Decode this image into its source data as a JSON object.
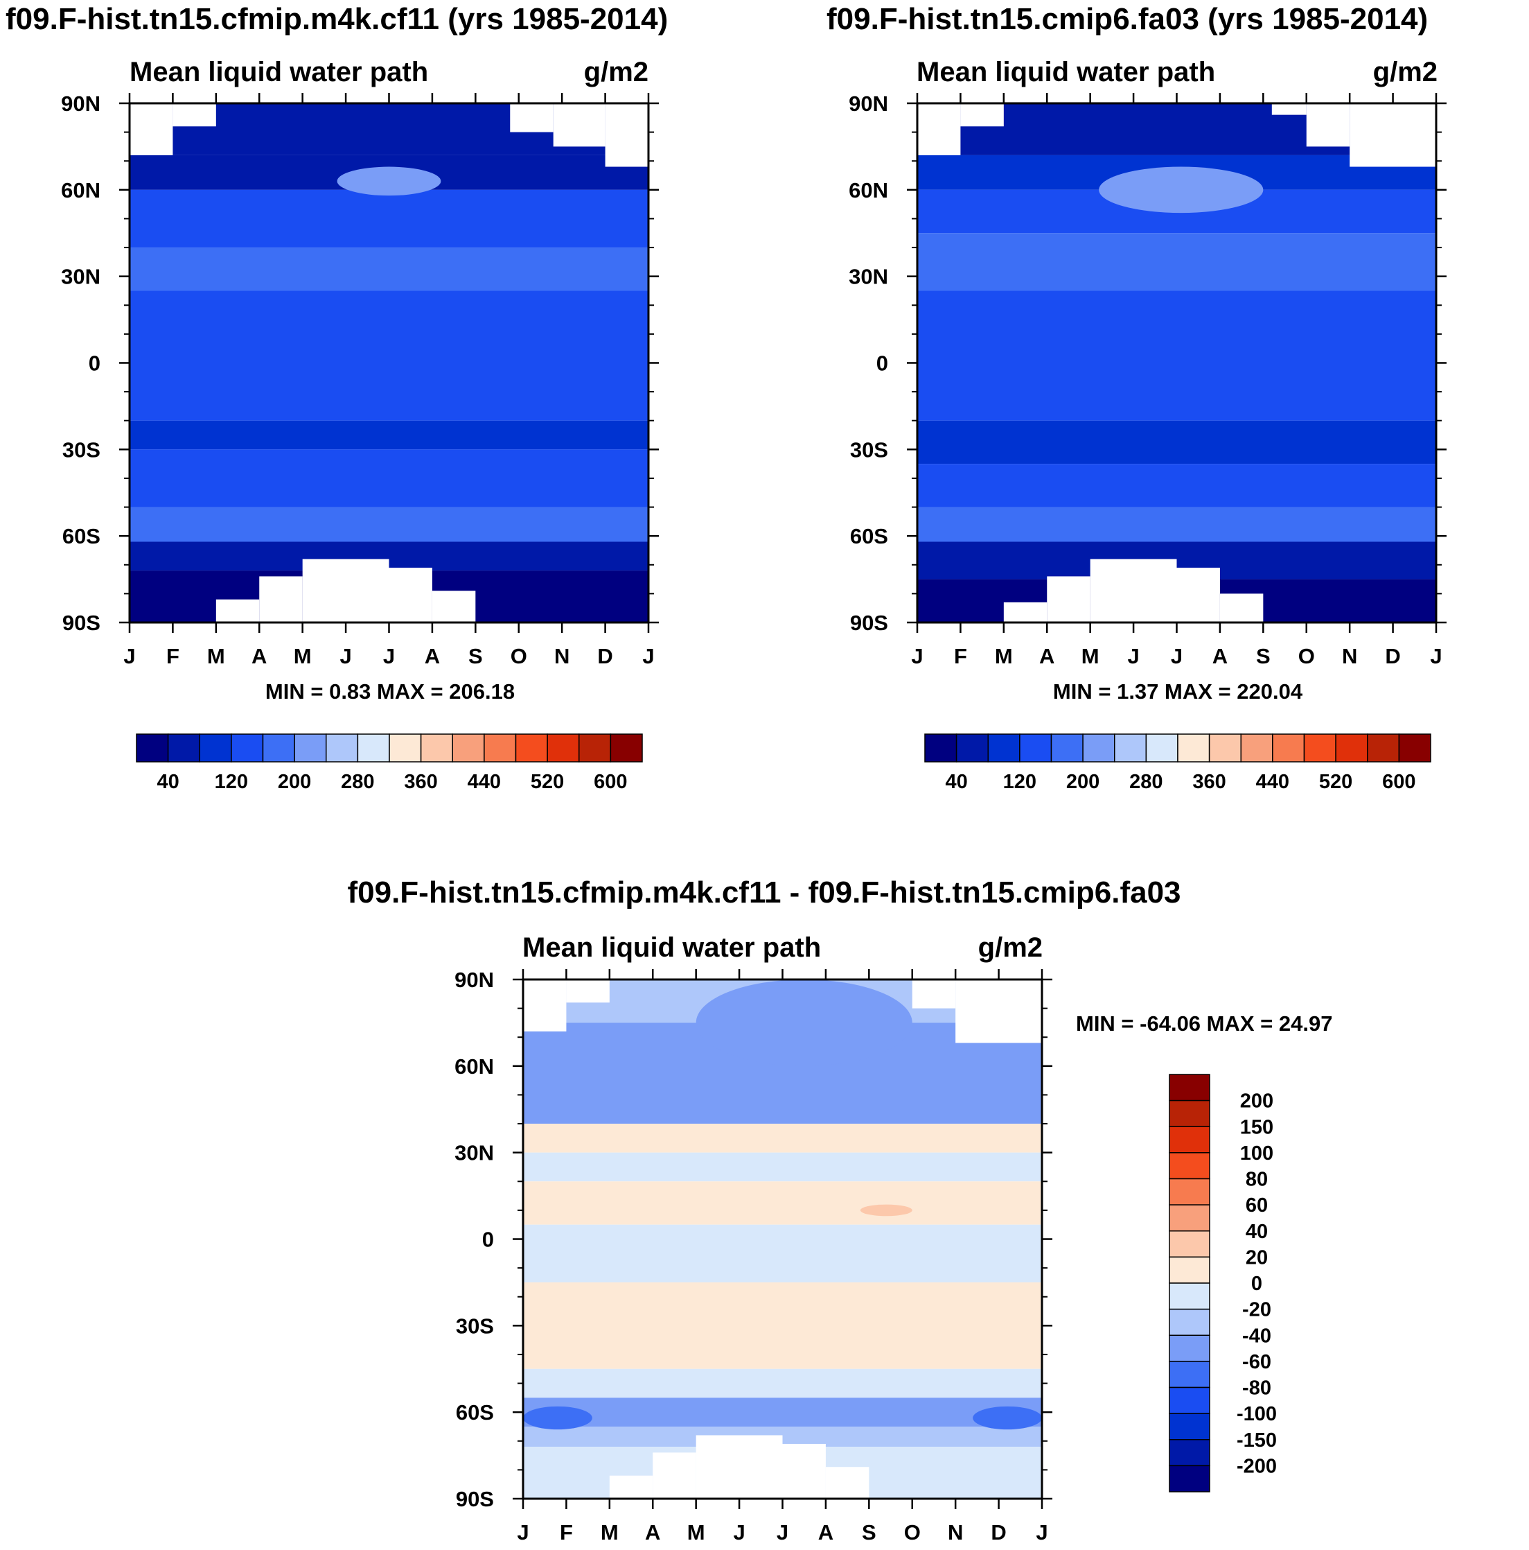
{
  "chart_data": [
    {
      "type": "heatmap",
      "id": "panel1",
      "title": "f09.F-hist.tn15.cfmip.m4k.cf11 (yrs 1985-2014)",
      "subtitle_left": "Mean liquid water path",
      "subtitle_right": "g/m2",
      "xlabel": "",
      "ylabel": "",
      "x_ticks": [
        "J",
        "F",
        "M",
        "A",
        "M",
        "J",
        "J",
        "A",
        "S",
        "O",
        "N",
        "D",
        "J"
      ],
      "y_ticks": [
        "90N",
        "60N",
        "30N",
        "0",
        "30S",
        "60S",
        "90S"
      ],
      "ylim": [
        -90,
        90
      ],
      "stats_label": "MIN =   0.83 MAX = 206.18",
      "min": 0.83,
      "max": 206.18,
      "colorbar": {
        "orientation": "horizontal",
        "labels": [
          "40",
          "120",
          "200",
          "280",
          "360",
          "440",
          "520",
          "600"
        ],
        "levels": [
          0,
          40,
          80,
          120,
          160,
          200,
          240,
          280,
          320,
          360,
          400,
          440,
          480,
          520,
          560,
          600
        ]
      },
      "bands": [
        {
          "lat": [
            72,
            90
          ],
          "level": 1
        },
        {
          "lat": [
            60,
            72
          ],
          "level": 1
        },
        {
          "lat": [
            40,
            60
          ],
          "level": 3
        },
        {
          "lat": [
            25,
            40
          ],
          "level": 4
        },
        {
          "lat": [
            -20,
            25
          ],
          "level": 3
        },
        {
          "lat": [
            -30,
            -20
          ],
          "level": 2
        },
        {
          "lat": [
            -50,
            -30
          ],
          "level": 3
        },
        {
          "lat": [
            -62,
            -50
          ],
          "level": 4
        },
        {
          "lat": [
            -72,
            -62
          ],
          "level": 1
        },
        {
          "lat": [
            -90,
            -72
          ],
          "level": 0
        }
      ],
      "patches": [
        {
          "lat": [
            58,
            68
          ],
          "mon": [
            4.8,
            7.2
          ],
          "level": 5
        }
      ],
      "mask": [
        {
          "lat": [
            72,
            90
          ],
          "mon": [
            0,
            1
          ]
        },
        {
          "lat": [
            82,
            90
          ],
          "mon": [
            1,
            2
          ]
        },
        {
          "lat": [
            80,
            90
          ],
          "mon": [
            8.8,
            9.8
          ]
        },
        {
          "lat": [
            75,
            90
          ],
          "mon": [
            9.8,
            11
          ]
        },
        {
          "lat": [
            68,
            90
          ],
          "mon": [
            11,
            12
          ]
        },
        {
          "lat": [
            -90,
            -68
          ],
          "mon": [
            4,
            6
          ]
        },
        {
          "lat": [
            -90,
            -71
          ],
          "mon": [
            6,
            7
          ]
        },
        {
          "lat": [
            -90,
            -74
          ],
          "mon": [
            3,
            4
          ]
        },
        {
          "lat": [
            -90,
            -79
          ],
          "mon": [
            7,
            8
          ]
        },
        {
          "lat": [
            -90,
            -82
          ],
          "mon": [
            2,
            3
          ]
        }
      ]
    },
    {
      "type": "heatmap",
      "id": "panel2",
      "title": "f09.F-hist.tn15.cmip6.fa03 (yrs 1985-2014)",
      "subtitle_left": "Mean liquid water path",
      "subtitle_right": "g/m2",
      "xlabel": "",
      "ylabel": "",
      "x_ticks": [
        "J",
        "F",
        "M",
        "A",
        "M",
        "J",
        "J",
        "A",
        "S",
        "O",
        "N",
        "D",
        "J"
      ],
      "y_ticks": [
        "90N",
        "60N",
        "30N",
        "0",
        "30S",
        "60S",
        "90S"
      ],
      "ylim": [
        -90,
        90
      ],
      "stats_label": "MIN =   1.37 MAX = 220.04",
      "min": 1.37,
      "max": 220.04,
      "colorbar": {
        "orientation": "horizontal",
        "labels": [
          "40",
          "120",
          "200",
          "280",
          "360",
          "440",
          "520",
          "600"
        ],
        "levels": [
          0,
          40,
          80,
          120,
          160,
          200,
          240,
          280,
          320,
          360,
          400,
          440,
          480,
          520,
          560,
          600
        ]
      },
      "bands": [
        {
          "lat": [
            72,
            90
          ],
          "level": 1
        },
        {
          "lat": [
            60,
            72
          ],
          "level": 2
        },
        {
          "lat": [
            45,
            60
          ],
          "level": 3
        },
        {
          "lat": [
            25,
            45
          ],
          "level": 4
        },
        {
          "lat": [
            -20,
            25
          ],
          "level": 3
        },
        {
          "lat": [
            -35,
            -20
          ],
          "level": 2
        },
        {
          "lat": [
            -50,
            -35
          ],
          "level": 3
        },
        {
          "lat": [
            -62,
            -50
          ],
          "level": 4
        },
        {
          "lat": [
            -75,
            -62
          ],
          "level": 1
        },
        {
          "lat": [
            -90,
            -75
          ],
          "level": 0
        }
      ],
      "patches": [
        {
          "lat": [
            52,
            68
          ],
          "mon": [
            4.2,
            8.0
          ],
          "level": 5
        }
      ],
      "mask": [
        {
          "lat": [
            72,
            90
          ],
          "mon": [
            0,
            1
          ]
        },
        {
          "lat": [
            82,
            90
          ],
          "mon": [
            1,
            2
          ]
        },
        {
          "lat": [
            86,
            90
          ],
          "mon": [
            8.2,
            9
          ]
        },
        {
          "lat": [
            75,
            90
          ],
          "mon": [
            9,
            10
          ]
        },
        {
          "lat": [
            68,
            90
          ],
          "mon": [
            10,
            12
          ]
        },
        {
          "lat": [
            -90,
            -68
          ],
          "mon": [
            4,
            6
          ]
        },
        {
          "lat": [
            -90,
            -71
          ],
          "mon": [
            6,
            7
          ]
        },
        {
          "lat": [
            -90,
            -74
          ],
          "mon": [
            3,
            4
          ]
        },
        {
          "lat": [
            -90,
            -80
          ],
          "mon": [
            7,
            8
          ]
        },
        {
          "lat": [
            -90,
            -83
          ],
          "mon": [
            2,
            3
          ]
        }
      ]
    },
    {
      "type": "heatmap",
      "id": "panel3",
      "title": "f09.F-hist.tn15.cfmip.m4k.cf11 - f09.F-hist.tn15.cmip6.fa03",
      "subtitle_left": "Mean liquid water path",
      "subtitle_right": "g/m2",
      "xlabel": "",
      "ylabel": "",
      "x_ticks": [
        "J",
        "F",
        "M",
        "A",
        "M",
        "J",
        "J",
        "A",
        "S",
        "O",
        "N",
        "D",
        "J"
      ],
      "y_ticks": [
        "90N",
        "60N",
        "30N",
        "0",
        "30S",
        "60S",
        "90S"
      ],
      "ylim": [
        -90,
        90
      ],
      "stats_label": "MIN = -64.06 MAX =  24.97",
      "min": -64.06,
      "max": 24.97,
      "colorbar": {
        "orientation": "vertical",
        "labels": [
          "200",
          "150",
          "100",
          "80",
          "60",
          "40",
          "20",
          "0",
          "-20",
          "-40",
          "-60",
          "-80",
          "-100",
          "-150",
          "-200"
        ],
        "levels": [
          -200,
          -150,
          -100,
          -80,
          -60,
          -40,
          -20,
          0,
          20,
          40,
          60,
          80,
          100,
          150,
          200
        ]
      },
      "bands": [
        {
          "lat": [
            75,
            90
          ],
          "level": 6
        },
        {
          "lat": [
            40,
            75
          ],
          "level": 5
        },
        {
          "lat": [
            30,
            40
          ],
          "level": 8
        },
        {
          "lat": [
            20,
            30
          ],
          "level": 7
        },
        {
          "lat": [
            5,
            20
          ],
          "level": 8
        },
        {
          "lat": [
            -15,
            5
          ],
          "level": 7
        },
        {
          "lat": [
            -45,
            -15
          ],
          "level": 8
        },
        {
          "lat": [
            -55,
            -45
          ],
          "level": 7
        },
        {
          "lat": [
            -65,
            -55
          ],
          "level": 5
        },
        {
          "lat": [
            -72,
            -65
          ],
          "level": 6
        },
        {
          "lat": [
            -90,
            -72
          ],
          "level": 7
        }
      ],
      "patches": [
        {
          "lat": [
            60,
            90
          ],
          "mon": [
            4.0,
            9.0
          ],
          "level": 5
        },
        {
          "lat": [
            -66,
            -58
          ],
          "mon": [
            0,
            1.6
          ],
          "level": 4
        },
        {
          "lat": [
            -66,
            -58
          ],
          "mon": [
            10.4,
            12
          ],
          "level": 4
        },
        {
          "lat": [
            8,
            12
          ],
          "mon": [
            7.8,
            9.0
          ],
          "level": 9
        }
      ],
      "mask": [
        {
          "lat": [
            72,
            90
          ],
          "mon": [
            0,
            1
          ]
        },
        {
          "lat": [
            82,
            90
          ],
          "mon": [
            1,
            2
          ]
        },
        {
          "lat": [
            80,
            90
          ],
          "mon": [
            9,
            10
          ]
        },
        {
          "lat": [
            68,
            90
          ],
          "mon": [
            10,
            12
          ]
        },
        {
          "lat": [
            -90,
            -68
          ],
          "mon": [
            4,
            6
          ]
        },
        {
          "lat": [
            -90,
            -71
          ],
          "mon": [
            6,
            7
          ]
        },
        {
          "lat": [
            -90,
            -74
          ],
          "mon": [
            3,
            4
          ]
        },
        {
          "lat": [
            -90,
            -79
          ],
          "mon": [
            7,
            8
          ]
        },
        {
          "lat": [
            -90,
            -82
          ],
          "mon": [
            2,
            3
          ]
        }
      ]
    }
  ],
  "palettes": {
    "absolute": [
      "#000080",
      "#0019a8",
      "#0033d1",
      "#1a4df2",
      "#3d6ff5",
      "#7a9df7",
      "#aec7fa",
      "#d8e8fb",
      "#fde9d6",
      "#fcc8ab",
      "#f8a07c",
      "#f77b4f",
      "#f44d1e",
      "#e0300a",
      "#b82306",
      "#880000"
    ],
    "difference": [
      "#000080",
      "#0019a8",
      "#0033d1",
      "#1a4df2",
      "#3d6ff5",
      "#7a9df7",
      "#aec7fa",
      "#d8e8fb",
      "#fde9d6",
      "#fcc8ab",
      "#f8a07c",
      "#f77b4f",
      "#f44d1e",
      "#e0300a",
      "#b82306",
      "#880000"
    ]
  }
}
